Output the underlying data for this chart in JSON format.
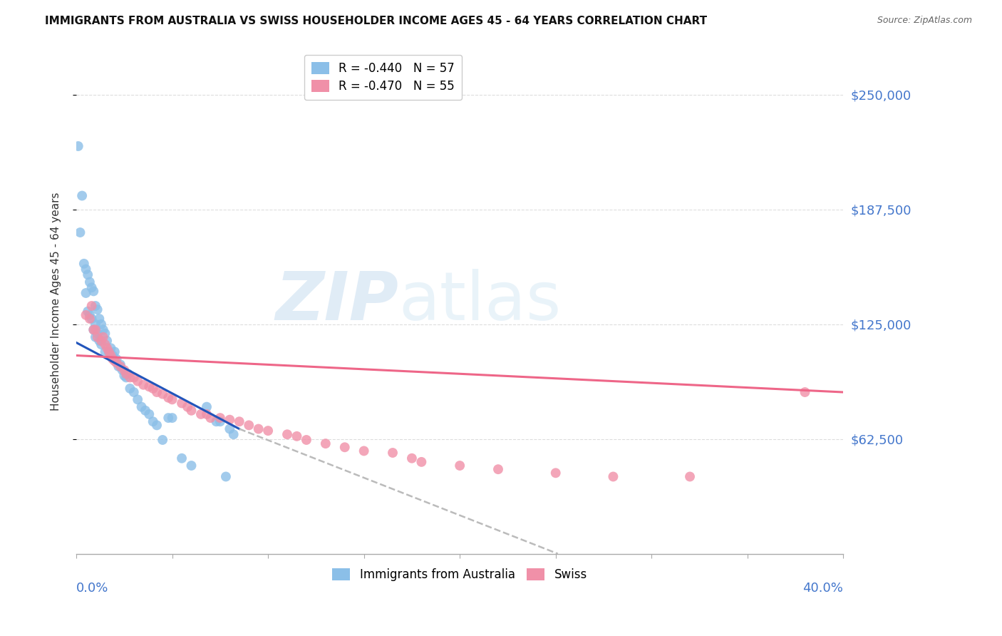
{
  "title": "IMMIGRANTS FROM AUSTRALIA VS SWISS HOUSEHOLDER INCOME AGES 45 - 64 YEARS CORRELATION CHART",
  "source": "Source: ZipAtlas.com",
  "ylabel": "Householder Income Ages 45 - 64 years",
  "ytick_labels": [
    "$62,500",
    "$125,000",
    "$187,500",
    "$250,000"
  ],
  "ytick_values": [
    62500,
    125000,
    187500,
    250000
  ],
  "ymin": 0,
  "ymax": 275000,
  "xmin": 0.0,
  "xmax": 0.4,
  "blue_color": "#8bbfe8",
  "pink_color": "#f090a8",
  "blue_line_color": "#2255bb",
  "pink_line_color": "#ee6688",
  "dashed_line_color": "#bbbbbb",
  "watermark_zip": "ZIP",
  "watermark_atlas": "atlas",
  "background_color": "#ffffff",
  "grid_color": "#dddddd",
  "right_label_color": "#4477cc",
  "title_color": "#111111",
  "source_color": "#666666",
  "ylabel_color": "#333333",
  "blue_line_x": [
    0.0,
    0.085
  ],
  "blue_line_y": [
    115000,
    68000
  ],
  "dashed_line_x": [
    0.085,
    0.3
  ],
  "dashed_line_y": [
    68000,
    -20000
  ],
  "pink_line_x": [
    0.0,
    0.4
  ],
  "pink_line_y": [
    108000,
    88000
  ],
  "blue_x": [
    0.001,
    0.002,
    0.003,
    0.004,
    0.005,
    0.005,
    0.006,
    0.006,
    0.007,
    0.007,
    0.008,
    0.008,
    0.009,
    0.009,
    0.01,
    0.01,
    0.01,
    0.011,
    0.011,
    0.012,
    0.012,
    0.013,
    0.013,
    0.014,
    0.015,
    0.015,
    0.016,
    0.017,
    0.018,
    0.019,
    0.02,
    0.021,
    0.022,
    0.023,
    0.024,
    0.025,
    0.026,
    0.027,
    0.028,
    0.03,
    0.032,
    0.034,
    0.036,
    0.038,
    0.04,
    0.042,
    0.045,
    0.048,
    0.05,
    0.055,
    0.06,
    0.068,
    0.073,
    0.075,
    0.078,
    0.08,
    0.082
  ],
  "blue_y": [
    222000,
    175000,
    195000,
    158000,
    155000,
    142000,
    152000,
    132000,
    148000,
    130000,
    145000,
    128000,
    143000,
    122000,
    135000,
    125000,
    118000,
    133000,
    120000,
    128000,
    116000,
    125000,
    114000,
    122000,
    120000,
    110000,
    116000,
    110000,
    112000,
    108000,
    110000,
    106000,
    102000,
    103000,
    100000,
    97000,
    96000,
    98000,
    90000,
    88000,
    84000,
    80000,
    78000,
    76000,
    72000,
    70000,
    62000,
    74000,
    74000,
    52000,
    48000,
    80000,
    72000,
    72000,
    42000,
    68000,
    65000
  ],
  "pink_x": [
    0.005,
    0.007,
    0.008,
    0.009,
    0.01,
    0.011,
    0.013,
    0.014,
    0.015,
    0.016,
    0.017,
    0.018,
    0.019,
    0.02,
    0.021,
    0.023,
    0.025,
    0.026,
    0.028,
    0.03,
    0.032,
    0.035,
    0.038,
    0.04,
    0.042,
    0.045,
    0.048,
    0.05,
    0.055,
    0.058,
    0.06,
    0.065,
    0.068,
    0.07,
    0.075,
    0.08,
    0.085,
    0.09,
    0.095,
    0.1,
    0.11,
    0.115,
    0.12,
    0.13,
    0.14,
    0.15,
    0.165,
    0.175,
    0.18,
    0.2,
    0.22,
    0.25,
    0.28,
    0.32,
    0.38
  ],
  "pink_y": [
    130000,
    128000,
    135000,
    122000,
    122000,
    118000,
    116000,
    118000,
    114000,
    112000,
    110000,
    108000,
    106000,
    105000,
    104000,
    102000,
    100000,
    98000,
    96000,
    96000,
    94000,
    92000,
    91000,
    90000,
    88000,
    87000,
    85000,
    84000,
    82000,
    80000,
    78000,
    76000,
    76000,
    74000,
    74000,
    73000,
    72000,
    70000,
    68000,
    67000,
    65000,
    64000,
    62000,
    60000,
    58000,
    56000,
    55000,
    52000,
    50000,
    48000,
    46000,
    44000,
    42000,
    42000,
    88000
  ]
}
